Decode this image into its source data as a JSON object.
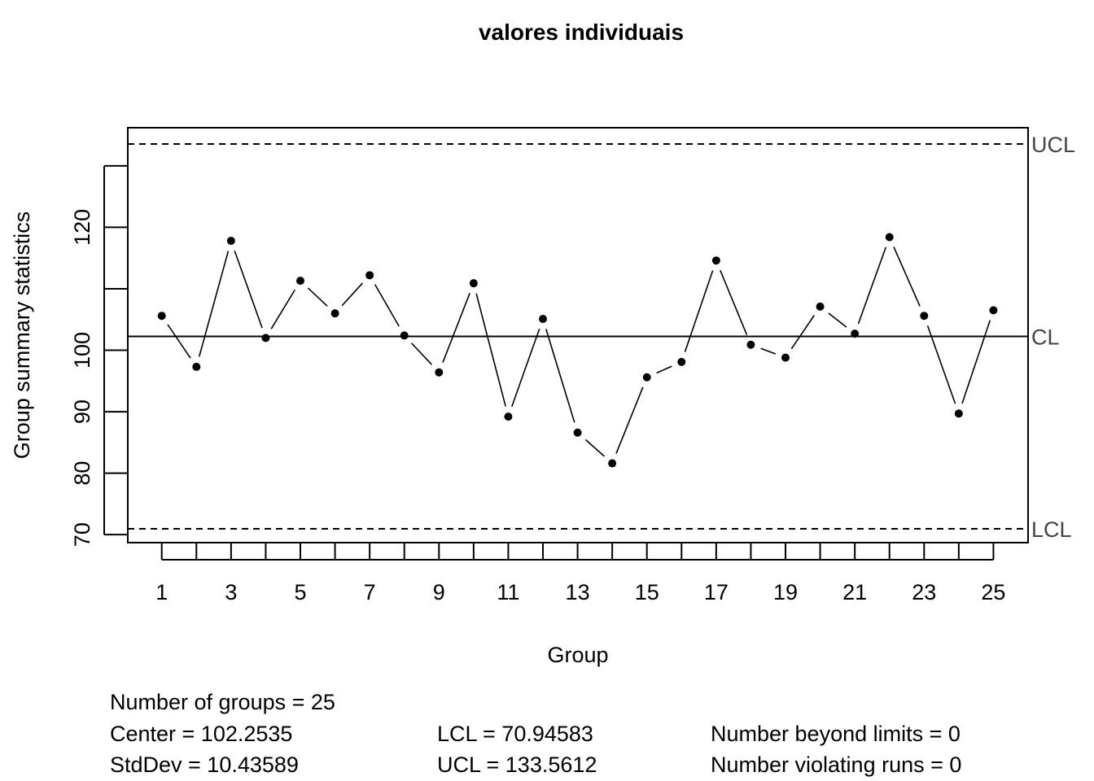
{
  "chart_data": {
    "type": "line",
    "title": "valores individuais",
    "xlabel": "Group",
    "ylabel": "Group summary statistics",
    "x": [
      1,
      2,
      3,
      4,
      5,
      6,
      7,
      8,
      9,
      10,
      11,
      12,
      13,
      14,
      15,
      16,
      17,
      18,
      19,
      20,
      21,
      22,
      23,
      24,
      25
    ],
    "x_tick_labels": [
      "1",
      "3",
      "5",
      "7",
      "9",
      "11",
      "13",
      "15",
      "17",
      "19",
      "21",
      "23",
      "25"
    ],
    "y_tick_labels": [
      "70",
      "80",
      "90",
      "100",
      "120"
    ],
    "ylim": [
      68.7,
      136.2
    ],
    "xlim": [
      0.02,
      26.0
    ],
    "series": [
      {
        "values": [
          105.6,
          97.3,
          117.8,
          102.0,
          111.3,
          106.0,
          112.2,
          102.4,
          96.4,
          110.9,
          89.2,
          105.1,
          86.6,
          81.6,
          95.6,
          98.1,
          114.6,
          100.9,
          98.8,
          107.1,
          102.7,
          118.4,
          105.6,
          89.7,
          106.5
        ]
      }
    ],
    "control_limits": {
      "center": 102.2535,
      "lcl": 70.94583,
      "ucl": 133.5612,
      "labels": {
        "ucl": "UCL",
        "cl": "CL",
        "lcl": "LCL"
      }
    },
    "legend": "none",
    "grid": false
  },
  "stats": {
    "groups": "Number of groups = 25",
    "center": "Center = 102.2535",
    "stddev": "StdDev = 10.43589",
    "lcl": "LCL = 70.94583",
    "ucl": "UCL = 133.5612",
    "beyond": "Number beyond limits = 0",
    "runs": "Number violating runs = 0"
  }
}
